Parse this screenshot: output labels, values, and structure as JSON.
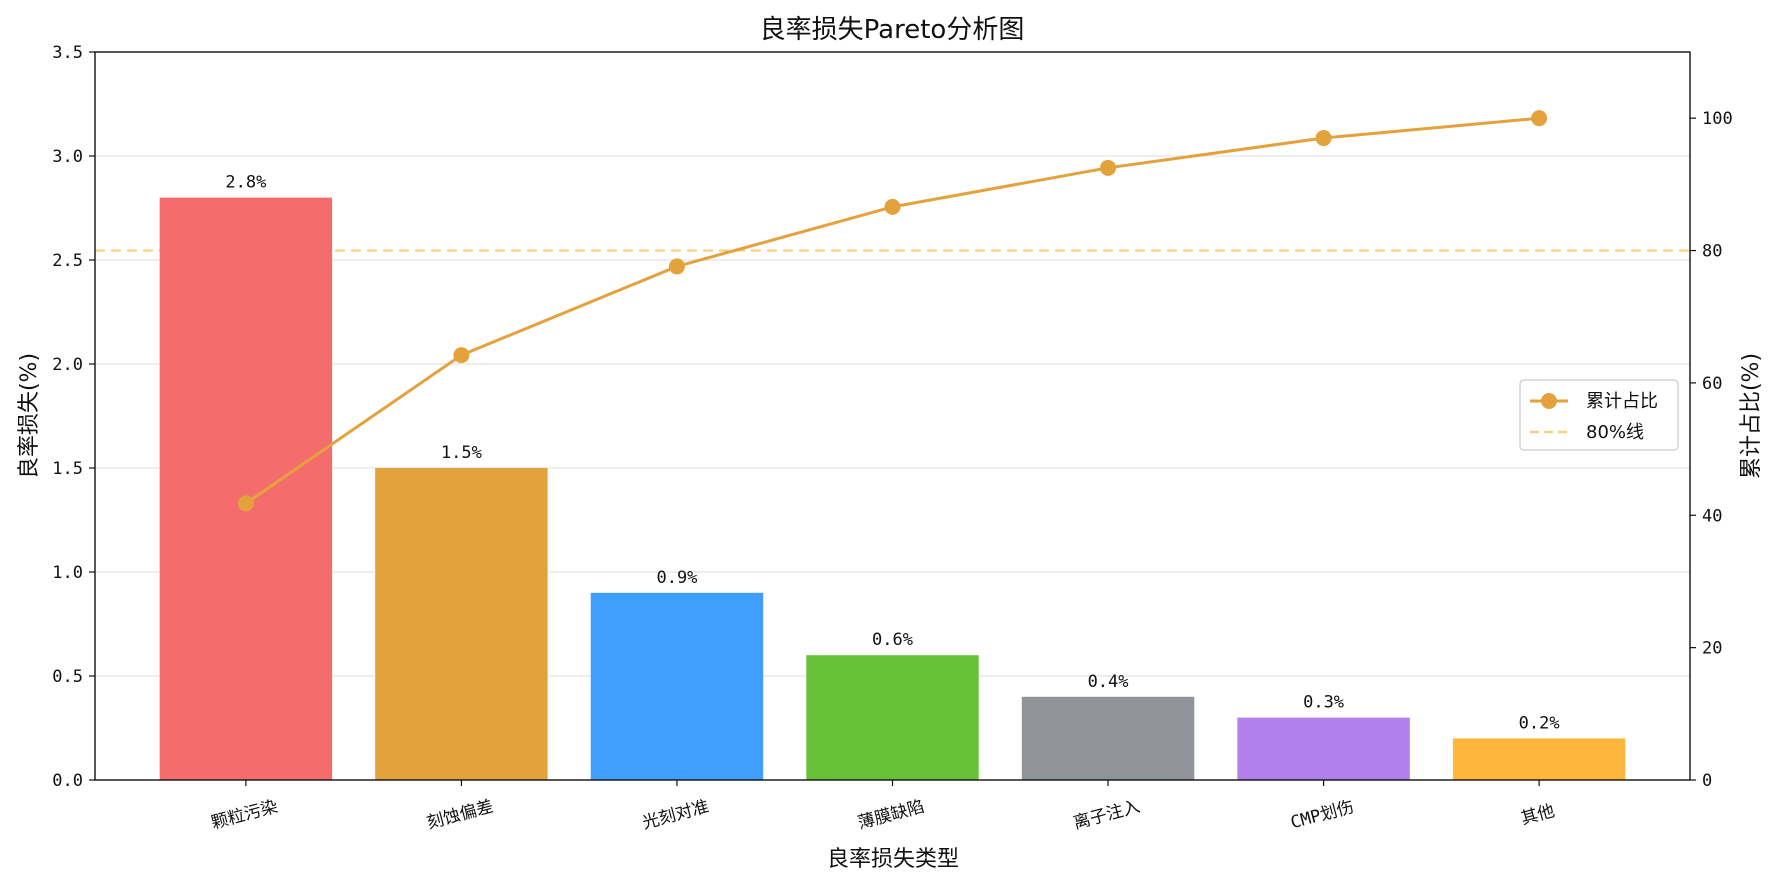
{
  "chart_data": {
    "type": "bar",
    "title": "良率损失Pareto分析图",
    "xlabel": "良率损失类型",
    "ylabel": "良率损失(%)",
    "y2label": "累计占比(%)",
    "categories": [
      "颗粒污染",
      "刻蚀偏差",
      "光刻对准",
      "薄膜缺陷",
      "离子注入",
      "CMP划伤",
      "其他"
    ],
    "series": [
      {
        "type": "bar",
        "axis": "left",
        "values": [
          2.8,
          1.5,
          0.9,
          0.6,
          0.4,
          0.3,
          0.2
        ],
        "data_labels": [
          "2.8%",
          "1.5%",
          "0.9%",
          "0.6%",
          "0.4%",
          "0.3%",
          "0.2%"
        ],
        "colors": [
          "#f46c6c",
          "#e4a23d",
          "#409eff",
          "#67c23a",
          "#909399",
          "#b37feb",
          "#ffb63c"
        ]
      },
      {
        "type": "line",
        "axis": "right",
        "name": "累计占比",
        "values": [
          41.8,
          64.2,
          77.6,
          86.6,
          92.5,
          97.0,
          100.0
        ],
        "color": "#e4a23d"
      }
    ],
    "reference_line": {
      "axis": "right",
      "value": 80,
      "name": "80%线",
      "style": "dashed",
      "color": "#f5cf86"
    },
    "ylim": [
      0,
      3.5
    ],
    "y2lim": [
      0,
      110
    ],
    "yticks": [
      0.0,
      0.5,
      1.0,
      1.5,
      2.0,
      2.5,
      3.0,
      3.5
    ],
    "ytick_labels": [
      "0.0",
      "0.5",
      "1.0",
      "1.5",
      "2.0",
      "2.5",
      "3.0",
      "3.5"
    ],
    "y2ticks": [
      0,
      20,
      40,
      60,
      80,
      100
    ],
    "y2tick_labels": [
      "0",
      "20",
      "40",
      "60",
      "80",
      "100"
    ],
    "grid": true,
    "legend_position": "center-right",
    "y2label_color": "#e4a23d"
  }
}
